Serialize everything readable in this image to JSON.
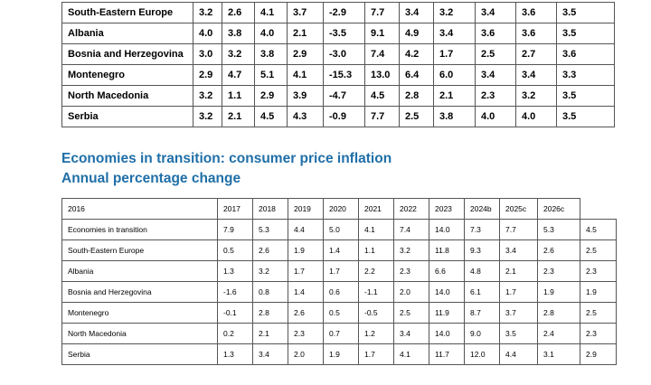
{
  "growth_table": {
    "rows": [
      [
        "South-Eastern Europe",
        "3.2",
        "2.6",
        "4.1",
        "3.7",
        "-2.9",
        "7.7",
        "3.4",
        "3.2",
        "3.4",
        "3.6",
        "3.5"
      ],
      [
        "Albania",
        "4.0",
        "3.8",
        "4.0",
        "2.1",
        "-3.5",
        "9.1",
        "4.9",
        "3.4",
        "3.6",
        "3.6",
        "3.5"
      ],
      [
        "Bosnia and Herzegovina",
        "3.0",
        "3.2",
        "3.8",
        "2.9",
        "-3.0",
        "7.4",
        "4.2",
        "1.7",
        "2.5",
        "2.7",
        "3.6"
      ],
      [
        "Montenegro",
        "2.9",
        "4.7",
        "5.1",
        "4.1",
        "-15.3",
        "13.0",
        "6.4",
        "6.0",
        "3.4",
        "3.4",
        "3.3"
      ],
      [
        "North Macedonia",
        "3.2",
        "1.1",
        "2.9",
        "3.9",
        "-4.7",
        "4.5",
        "2.8",
        "2.1",
        "2.3",
        "3.2",
        "3.5"
      ],
      [
        "Serbia",
        "3.2",
        "2.1",
        "4.5",
        "4.3",
        "-0.9",
        "7.7",
        "2.5",
        "3.8",
        "4.0",
        "4.0",
        "3.5"
      ]
    ]
  },
  "inflation_section": {
    "title": "Economies in transition: consumer price inflation",
    "subtitle": "Annual percentage change",
    "table": {
      "header": [
        "2016",
        "2017",
        "2018",
        "2019",
        "2020",
        "2021",
        "2022",
        "2023",
        "2024b",
        "2025c",
        "2026c"
      ],
      "rows": [
        [
          "Economies in transition",
          "7.9",
          "5.3",
          "4.4",
          "5.0",
          "4.1",
          "7.4",
          "14.0",
          "7.3",
          "7.7",
          "5.3",
          "4.5"
        ],
        [
          "South-Eastern Europe",
          "0.5",
          "2.6",
          "1.9",
          "1.4",
          "1.1",
          "3.2",
          "11.8",
          "9.3",
          "3.4",
          "2.6",
          "2.5"
        ],
        [
          "Albania",
          "1.3",
          "3.2",
          "1.7",
          "1.7",
          "2.2",
          "2.3",
          "6.6",
          "4.8",
          "2.1",
          "2.3",
          "2.3"
        ],
        [
          "Bosnia and Herzegovina",
          "-1.6",
          "0.8",
          "1.4",
          "0.6",
          "-1.1",
          "2.0",
          "14.0",
          "6.1",
          "1.7",
          "1.9",
          "1.9"
        ],
        [
          "Montenegro",
          "-0.1",
          "2.8",
          "2.6",
          "0.5",
          "-0.5",
          "2.5",
          "11.9",
          "8.7",
          "3.7",
          "2.8",
          "2.5"
        ],
        [
          "North Macedonia",
          "0.2",
          "2.1",
          "2.3",
          "0.7",
          "1.2",
          "3.4",
          "14.0",
          "9.0",
          "3.5",
          "2.4",
          "2.3"
        ],
        [
          "Serbia",
          "1.3",
          "3.4",
          "2.0",
          "1.9",
          "1.7",
          "4.1",
          "11.7",
          "12.0",
          "4.4",
          "3.1",
          "2.9"
        ]
      ]
    }
  }
}
